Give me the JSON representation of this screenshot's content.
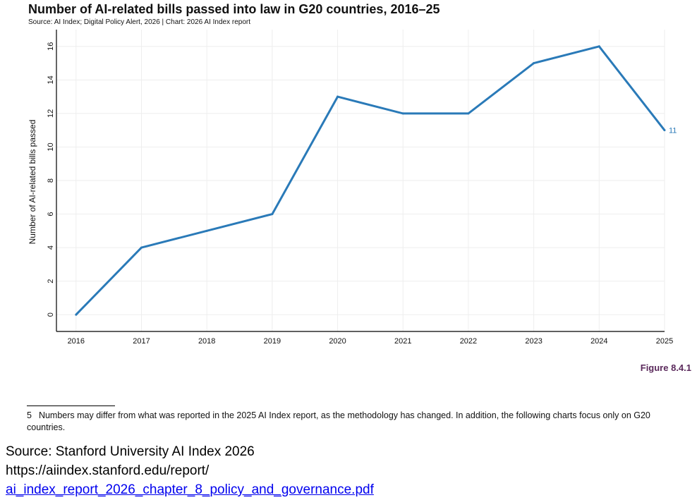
{
  "chart_data": {
    "type": "line",
    "title": "Number of AI-related bills passed into law in G20 countries, 2016–25",
    "subtitle": "Source: AI Index; Digital Policy Alert, 2026 | Chart: 2026 AI Index report",
    "ylabel": "Number of AI-related bills passed",
    "x": [
      2016,
      2017,
      2018,
      2019,
      2020,
      2021,
      2022,
      2023,
      2024,
      2025
    ],
    "series": [
      {
        "values": [
          0,
          4,
          5,
          6,
          13,
          12,
          12,
          15,
          16,
          11
        ],
        "color": "#2a7ab8"
      }
    ],
    "end_label": "11",
    "ylim": [
      -1,
      17
    ],
    "yticks": [
      0,
      2,
      4,
      6,
      8,
      10,
      12,
      14,
      16
    ],
    "xlim": [
      2015.7,
      2025
    ],
    "grid": true
  },
  "figure_label": "Figure 8.4.1",
  "footnote": {
    "number": "5",
    "text": "Numbers may differ from what was reported in the 2025 AI Index report, as the methodology has changed. In addition, the following charts focus only on G20 countries."
  },
  "source": {
    "line1": "Source: Stanford University AI Index 2026",
    "line2": "https://aiindex.stanford.edu/report/",
    "link_text": "ai_index_report_2026_chapter_8_policy_and_governance.pdf"
  },
  "colors": {
    "line": "#2a7ab8",
    "figure_label": "#5b2a5c",
    "grid": "#eeeeee"
  }
}
